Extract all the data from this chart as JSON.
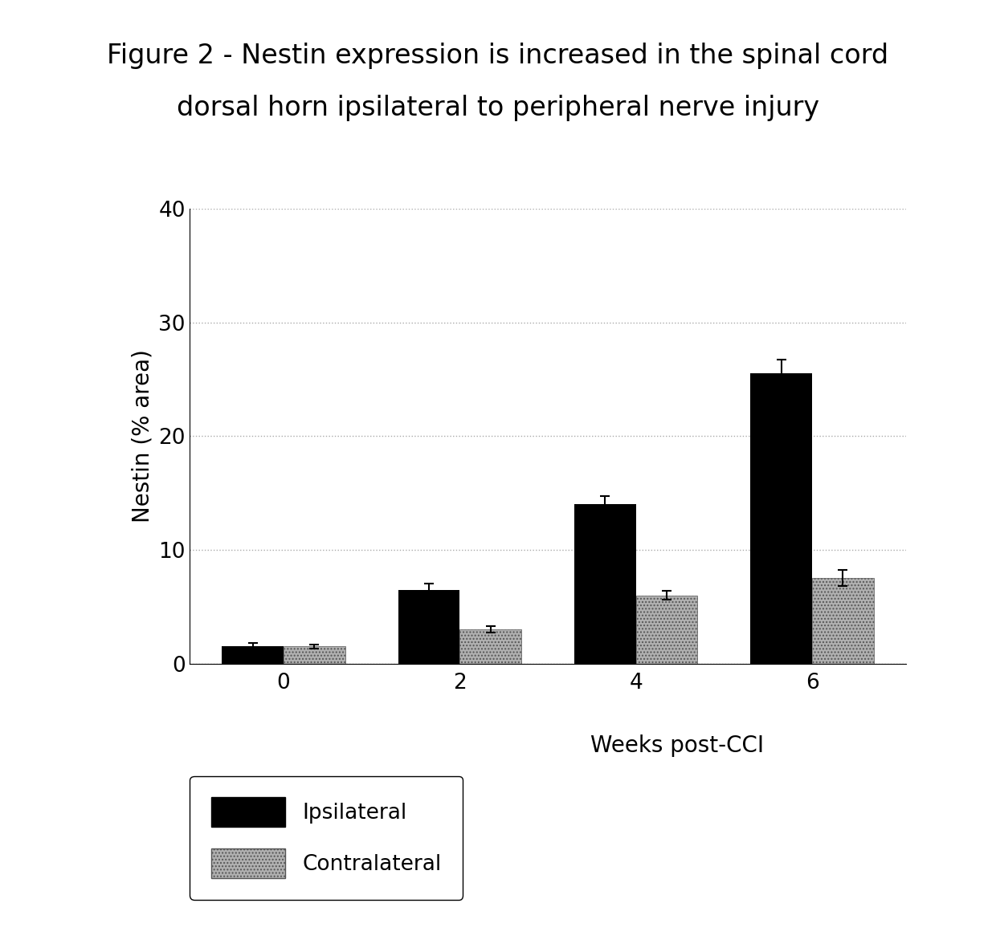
{
  "title_line1": "Figure 2 - Nestin expression is increased in the spinal cord",
  "title_line2": "dorsal horn ipsilateral to peripheral nerve injury",
  "xlabel": "Weeks post-CCI",
  "ylabel": "Nestin (% area)",
  "weeks": [
    0,
    2,
    4,
    6
  ],
  "ipsilateral": [
    1.5,
    6.5,
    14.0,
    25.5
  ],
  "contralateral": [
    1.5,
    3.0,
    6.0,
    7.5
  ],
  "ipsilateral_err": [
    0.3,
    0.5,
    0.7,
    1.2
  ],
  "contralateral_err": [
    0.2,
    0.3,
    0.4,
    0.7
  ],
  "ylim": [
    0,
    40
  ],
  "yticks": [
    0,
    10,
    20,
    30,
    40
  ],
  "bar_width": 0.35,
  "ipsilateral_color": "#000000",
  "contralateral_color": "#b0b0b0",
  "contralateral_hatch": "....",
  "background_color": "#ffffff",
  "grid_color": "#aaaaaa",
  "title_fontsize": 24,
  "axis_label_fontsize": 20,
  "tick_fontsize": 19,
  "legend_fontsize": 19
}
